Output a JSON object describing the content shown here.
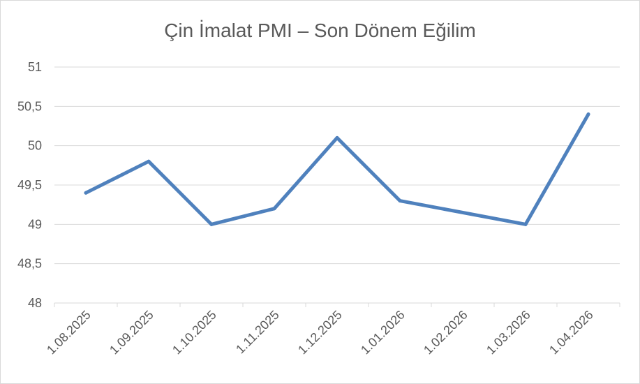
{
  "chart_data": {
    "type": "line",
    "title": "Çin İmalat PMI – Son Dönem Eğilim",
    "xlabel": "",
    "ylabel": "",
    "categories": [
      "1.08.2025",
      "1.09.2025",
      "1.10.2025",
      "1.11.2025",
      "1.12.2025",
      "1.01.2026",
      "1.02.2026",
      "1.03.2026",
      "1.04.2026"
    ],
    "series": [
      {
        "values": [
          49.4,
          49.8,
          49.0,
          49.2,
          50.1,
          49.3,
          null,
          49.0,
          50.4
        ],
        "color": "#4f81bd"
      }
    ],
    "ylim": [
      48,
      51
    ],
    "yticks": [
      48,
      48.5,
      49,
      49.5,
      50,
      50.5,
      51
    ],
    "ytick_labels": [
      "48",
      "48,5",
      "49",
      "49,5",
      "50",
      "50,5",
      "51"
    ],
    "grid": true,
    "legend": "none"
  }
}
